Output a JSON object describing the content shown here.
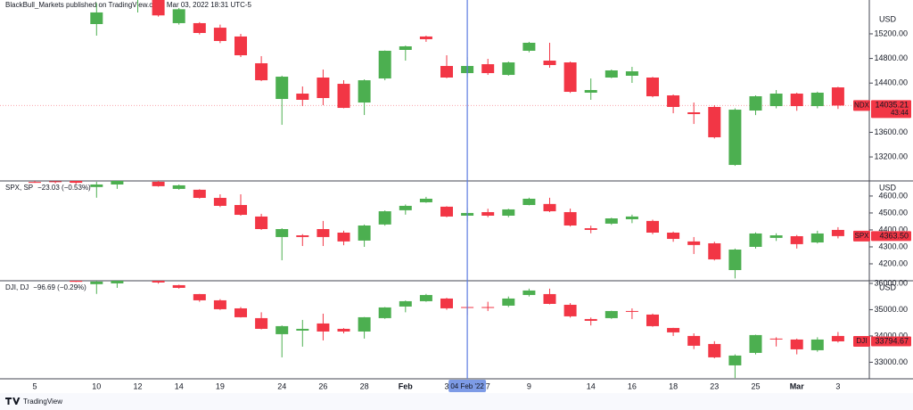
{
  "header": {
    "publisher": "BlackBull_Markets published on TradingView.com, Mar 03, 2022 18:31 UTC-5"
  },
  "footer": {
    "brand": "TradingView"
  },
  "chart_data": [
    {
      "type": "candlestick",
      "currency": "USD",
      "up_color": "#4caf50",
      "down_color": "#f23645",
      "price_line": true,
      "ylim": [
        12810,
        15750
      ],
      "yticks": [
        {
          "value": 13200,
          "label": "13200.00"
        },
        {
          "value": 13600,
          "label": "13600.00"
        },
        {
          "value": 14400,
          "label": "14400.00"
        },
        {
          "value": 14800,
          "label": "14800.00"
        },
        {
          "value": 15200,
          "label": "15200.00"
        }
      ],
      "last_price": {
        "symbol": "NDX",
        "value": 14035.21,
        "countdown": "43:44"
      },
      "open": [
        null,
        null,
        null,
        15359,
        null,
        15900,
        15950,
        15374,
        15374,
        15300,
        15157,
        14722,
        14142,
        14229,
        14490,
        14388,
        14084,
        14475,
        14939,
        15157,
        14678,
        14562,
        14707,
        14533,
        14925,
        14765,
        14736,
        14244,
        14490,
        14519,
        14490,
        14200,
        13925,
        14012,
        13070,
        13954,
        14026,
        14229,
        14026,
        14330
      ],
      "high": [
        null,
        null,
        null,
        15700,
        null,
        15950,
        16000,
        15620,
        15390,
        15350,
        15200,
        14838,
        14520,
        14345,
        14620,
        14446,
        14460,
        14930,
        15010,
        15171,
        14852,
        14823,
        14794,
        14750,
        15070,
        15055,
        14750,
        14475,
        14620,
        14664,
        14500,
        14215,
        14084,
        14040,
        13990,
        14200,
        14287,
        14244,
        14260,
        14340
      ],
      "low": [
        null,
        null,
        null,
        15171,
        null,
        15548,
        15480,
        15350,
        15190,
        15050,
        14823,
        14432,
        13722,
        14026,
        14041,
        13990,
        13881,
        14446,
        14765,
        15070,
        14480,
        14490,
        14533,
        14520,
        14900,
        14649,
        14240,
        14128,
        14480,
        14403,
        14170,
        13910,
        13736,
        13500,
        13055,
        13880,
        13990,
        13950,
        13990,
        13980
      ],
      "close": [
        null,
        null,
        null,
        15548,
        null,
        15905,
        15500,
        15600,
        15214,
        15084,
        14852,
        14446,
        14504,
        14128,
        14157,
        13997,
        14446,
        14925,
        14997,
        15113,
        14490,
        14678,
        14562,
        14736,
        15055,
        14693,
        14258,
        14287,
        14606,
        14591,
        14186,
        14012,
        13896,
        13519,
        13968,
        14186,
        14229,
        14026,
        14244,
        14035.21
      ]
    },
    {
      "type": "candlestick",
      "currency": "USD",
      "up_color": "#4caf50",
      "down_color": "#f23645",
      "legend": "SPX, SP",
      "change": "−23.03 (−0.53%)",
      "ylim": [
        4100,
        4689
      ],
      "yticks": [
        {
          "value": 4200,
          "label": "4200.00"
        },
        {
          "value": 4300,
          "label": "4300.00"
        },
        {
          "value": 4400,
          "label": "4400.00"
        },
        {
          "value": 4500,
          "label": "4500.00"
        },
        {
          "value": 4600,
          "label": "4600.00"
        }
      ],
      "last_price": {
        "symbol": "SPX",
        "value": {
          "value": 4363.5,
          "label": "4363.50"
        }
      },
      "open": [
        4683,
        4687,
        4690,
        4653,
        4668,
        null,
        4684,
        4642,
        4637,
        4589,
        4547,
        4479,
        4358,
        4368,
        4405,
        4384,
        4337,
        4432,
        4516,
        4563,
        4537,
        4484,
        4505,
        4484,
        4547,
        4553,
        4505,
        4410,
        4437,
        4463,
        4453,
        4384,
        4332,
        4321,
        4163,
        4300,
        4353,
        4363,
        4326,
        4400
      ],
      "high": [
        4690,
        4690,
        4695,
        4684,
        4692,
        null,
        4690,
        4668,
        4640,
        4610,
        4610,
        4495,
        4410,
        4375,
        4453,
        4395,
        4432,
        4515,
        4550,
        4595,
        4540,
        4530,
        4525,
        4525,
        4590,
        4590,
        4526,
        4425,
        4472,
        4490,
        4460,
        4390,
        4358,
        4330,
        4290,
        4385,
        4380,
        4370,
        4395,
        4416
      ],
      "low": [
        4678,
        4675,
        4670,
        4590,
        4642,
        null,
        4655,
        4637,
        4585,
        4535,
        4484,
        4400,
        4221,
        4305,
        4305,
        4310,
        4300,
        4425,
        4490,
        4560,
        4475,
        4450,
        4475,
        4475,
        4545,
        4505,
        4420,
        4380,
        4430,
        4440,
        4375,
        4330,
        4258,
        4220,
        4114,
        4290,
        4335,
        4290,
        4320,
        4350
      ],
      "close": [
        4681,
        4683,
        4678,
        4668,
        4689,
        null,
        4658,
        4663,
        4589,
        4542,
        4489,
        4405,
        4405,
        4358,
        4358,
        4332,
        4426,
        4510,
        4542,
        4584,
        4479,
        4500,
        4484,
        4521,
        4584,
        4510,
        4426,
        4400,
        4468,
        4479,
        4384,
        4347,
        4311,
        4226,
        4284,
        4379,
        4368,
        4316,
        4379,
        4363.5
      ]
    },
    {
      "type": "candlestick",
      "currency": "USD",
      "up_color": "#4caf50",
      "down_color": "#f23645",
      "legend": "DJI, DJ",
      "change": "−96.69 (−0.29%)",
      "ylim": [
        32370,
        36100
      ],
      "yticks": [
        {
          "value": 33000,
          "label": "33000.00"
        },
        {
          "value": 34000,
          "label": "34000.00"
        },
        {
          "value": 35000,
          "label": "35000.00"
        },
        {
          "value": 36000,
          "label": "36000.00"
        }
      ],
      "last_price": {
        "symbol": "DJI",
        "value": 33794.67
      },
      "categories": [
        "5",
        null,
        null,
        "10",
        null,
        "12",
        null,
        "14",
        null,
        "19",
        null,
        null,
        "24",
        null,
        "26",
        null,
        "28",
        null,
        "Feb",
        null,
        "3",
        "04 Feb '22",
        "7",
        null,
        "9",
        null,
        null,
        "14",
        null,
        "16",
        null,
        "18",
        null,
        "23",
        null,
        "25",
        null,
        "Mar",
        null,
        "3"
      ],
      "crosshair_index": 21,
      "open": [
        null,
        null,
        36230,
        35970,
        36000,
        null,
        36113,
        35932,
        35593,
        35356,
        35050,
        34678,
        34068,
        34203,
        34475,
        34271,
        34169,
        34678,
        35119,
        35322,
        35424,
        35100,
        35100,
        35153,
        35559,
        35593,
        35186,
        34644,
        34678,
        34950,
        34814,
        34305,
        34000,
        33695,
        32881,
        33356,
        33900,
        33864,
        33457,
        34000
      ],
      "high": [
        null,
        null,
        36300,
        36100,
        36150,
        null,
        36200,
        35950,
        35600,
        35400,
        35100,
        34900,
        34400,
        34610,
        34847,
        34300,
        34720,
        35100,
        35350,
        35600,
        35450,
        35350,
        35300,
        35500,
        35800,
        35800,
        35250,
        34700,
        34960,
        35050,
        34850,
        34310,
        34100,
        33800,
        33300,
        34050,
        33950,
        33900,
        33950,
        34150
      ],
      "low": [
        null,
        null,
        36050,
        35600,
        35830,
        null,
        35990,
        35800,
        35300,
        34990,
        34700,
        34250,
        33186,
        33593,
        33830,
        34100,
        33900,
        34650,
        34900,
        35300,
        35000,
        34800,
        34950,
        35100,
        35500,
        35200,
        34700,
        34400,
        34650,
        34644,
        34350,
        34000,
        33500,
        33150,
        32400,
        33300,
        33600,
        33300,
        33400,
        33750
      ],
      "close": [
        null,
        null,
        36060,
        36068,
        36100,
        null,
        36034,
        35830,
        35356,
        35017,
        34712,
        34271,
        34373,
        34271,
        34169,
        34169,
        34712,
        35085,
        35322,
        35559,
        35051,
        35090,
        35090,
        35424,
        35729,
        35220,
        34746,
        34576,
        34949,
        34930,
        34373,
        34136,
        33627,
        33186,
        33254,
        34034,
        33890,
        33491,
        33864,
        33794.67
      ]
    }
  ]
}
